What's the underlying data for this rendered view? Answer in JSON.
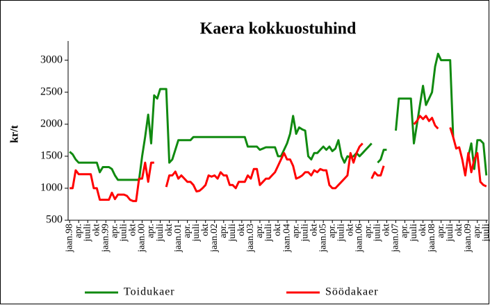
{
  "chart_data": {
    "type": "line",
    "title": "Kaera kokkuostuhind",
    "ylabel": "kr/t",
    "categories": [
      "jaan.98",
      null,
      null,
      "apr.",
      null,
      null,
      "juuli",
      null,
      null,
      "okt",
      null,
      null,
      "jaan.99",
      null,
      null,
      "apr.",
      null,
      null,
      "juuli",
      null,
      null,
      "okt",
      null,
      null,
      "jaan.00",
      null,
      null,
      "apr.",
      null,
      null,
      "juuli",
      null,
      null,
      "okt",
      null,
      null,
      "jaan.01",
      null,
      null,
      "apr.",
      null,
      null,
      "juuli",
      null,
      null,
      "okt",
      null,
      null,
      "jaan.02",
      null,
      null,
      "apr.",
      null,
      null,
      "juuli",
      null,
      null,
      "okt",
      null,
      null,
      "jaan.03",
      null,
      null,
      "apr.",
      null,
      null,
      "juuli",
      null,
      null,
      "okt",
      null,
      null,
      "jaan.04",
      null,
      null,
      "apr.",
      null,
      null,
      "juuli",
      null,
      null,
      "okt",
      null,
      null,
      "jaan.05",
      null,
      null,
      "apr.",
      null,
      null,
      "juuli",
      null,
      null,
      "okt",
      null,
      null,
      "jaan.06",
      null,
      null,
      "apr.",
      null,
      null,
      "juuli",
      null,
      null,
      "okt",
      null,
      null,
      "jaan.07",
      null,
      null,
      "apr.",
      null,
      null,
      "juuli",
      null,
      null,
      "okt",
      null,
      null,
      "jaan.08",
      null,
      null,
      "apr.",
      null,
      null,
      "juuli",
      null,
      null,
      "okt",
      null,
      null,
      "jaan.09",
      null,
      null,
      "apr.",
      null,
      null,
      "juuli"
    ],
    "series": [
      {
        "name": "Toidukaer",
        "color": "#108a10",
        "values": [
          1570,
          1530,
          1450,
          1400,
          1400,
          1400,
          1400,
          1400,
          1400,
          1400,
          1250,
          1330,
          1330,
          1330,
          1300,
          1200,
          1130,
          1130,
          1130,
          1130,
          1130,
          1130,
          1130,
          1130,
          1500,
          1800,
          2150,
          1700,
          2450,
          2400,
          2550,
          2550,
          2550,
          1400,
          1450,
          1600,
          1750,
          1750,
          1750,
          1750,
          1750,
          1800,
          1800,
          1800,
          1800,
          1800,
          1800,
          1800,
          1800,
          1800,
          1800,
          1800,
          1800,
          1800,
          1800,
          1800,
          1800,
          1800,
          1800,
          1650,
          1650,
          1650,
          1650,
          1600,
          1620,
          1640,
          1640,
          1640,
          1640,
          1500,
          1500,
          1600,
          1700,
          1850,
          2130,
          1850,
          1950,
          1920,
          1900,
          1500,
          1450,
          1550,
          1550,
          1600,
          1650,
          1600,
          1650,
          1580,
          1620,
          1750,
          1500,
          1400,
          1500,
          1480,
          1500,
          1550,
          1500,
          1550,
          1600,
          1650,
          1700,
          null,
          1400,
          1450,
          1600,
          1600,
          null,
          null,
          1900,
          2400,
          2400,
          2400,
          2400,
          2400,
          1700,
          2000,
          2300,
          2600,
          2300,
          2400,
          2500,
          2900,
          3100,
          3000,
          3000,
          3000,
          3000,
          1800,
          null,
          null,
          null,
          null,
          1500,
          1700,
          1300,
          1750,
          1750,
          1700,
          1200
        ]
      },
      {
        "name": "Söödakaer",
        "color": "#ff0000",
        "values": [
          1000,
          1000,
          1280,
          1220,
          1220,
          1220,
          1220,
          1220,
          1000,
          1000,
          820,
          820,
          820,
          820,
          930,
          830,
          900,
          900,
          900,
          880,
          820,
          800,
          800,
          1150,
          1150,
          1400,
          1100,
          1400,
          1400,
          null,
          null,
          null,
          1020,
          1200,
          1200,
          1260,
          1150,
          1200,
          1150,
          1100,
          1100,
          1050,
          950,
          960,
          1000,
          1050,
          1200,
          1180,
          1200,
          1150,
          1250,
          1200,
          1200,
          1050,
          1050,
          1000,
          1100,
          1100,
          1100,
          1200,
          1150,
          1300,
          1300,
          1050,
          1100,
          1150,
          1150,
          1200,
          1250,
          1350,
          1450,
          1550,
          1450,
          1450,
          1350,
          1150,
          1170,
          1200,
          1250,
          1250,
          1200,
          1280,
          1250,
          1300,
          1280,
          1280,
          1050,
          1000,
          1000,
          1050,
          1100,
          1150,
          1200,
          1550,
          1400,
          1550,
          1650,
          1700,
          null,
          null,
          1150,
          1250,
          1200,
          1200,
          1350,
          null,
          null,
          null,
          null,
          null,
          null,
          null,
          null,
          null,
          2000,
          2050,
          2130,
          2080,
          2130,
          2050,
          2100,
          1980,
          1930,
          null,
          null,
          null,
          1950,
          1800,
          1620,
          1640,
          1450,
          1200,
          1550,
          1250,
          1450,
          1550,
          1100,
          1050,
          1030
        ]
      }
    ],
    "ylim": [
      500,
      3300
    ],
    "yticks": [
      500,
      1000,
      1500,
      2000,
      2500,
      3000
    ],
    "grid": false,
    "legend": "bottom"
  }
}
